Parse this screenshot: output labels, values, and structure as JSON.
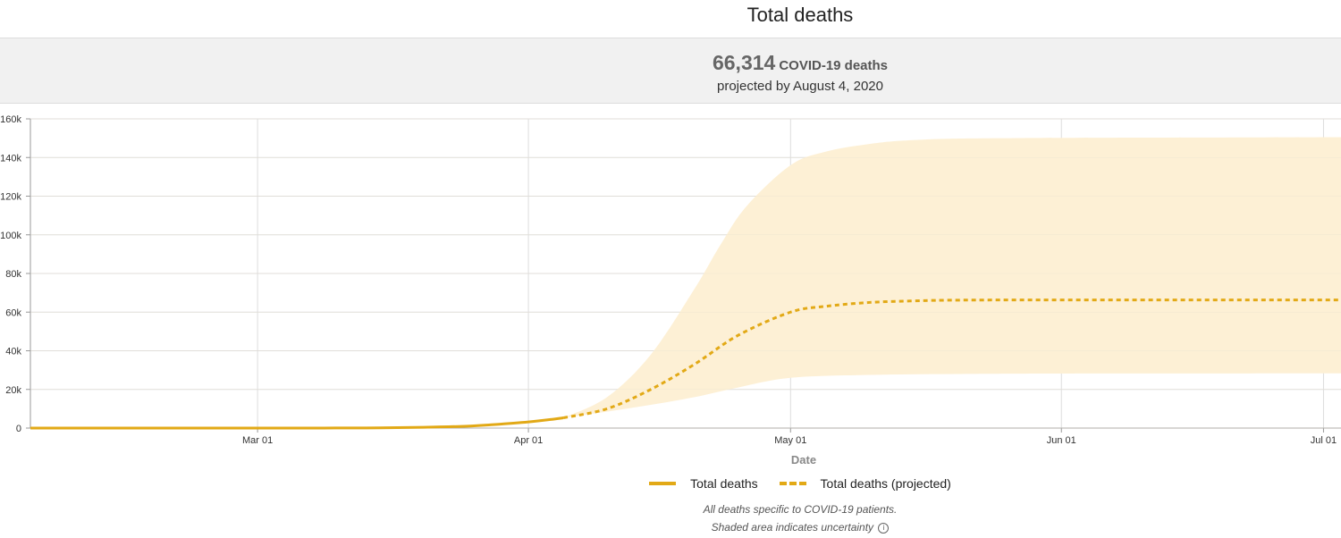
{
  "title": "Total deaths",
  "summary": {
    "value": "66,314",
    "label": "COVID-19 deaths",
    "subtitle": "projected by August 4, 2020"
  },
  "chart_data": {
    "type": "line",
    "xlabel": "Date",
    "ylabel": "",
    "ylim": [
      0,
      160000
    ],
    "yticks": [
      0,
      20000,
      40000,
      60000,
      80000,
      100000,
      120000,
      140000,
      160000
    ],
    "ytick_labels": [
      "0",
      "20k",
      "40k",
      "60k",
      "80k",
      "100k",
      "120k",
      "140k",
      "160k"
    ],
    "xlim": [
      "2020-02-04",
      "2020-07-03"
    ],
    "xticks": [
      "2020-03-01",
      "2020-04-01",
      "2020-05-01",
      "2020-06-01",
      "2020-07-01"
    ],
    "xtick_labels": [
      "Mar 01",
      "Apr 01",
      "May 01",
      "Jun 01",
      "Jul 01"
    ],
    "grid": true,
    "colors": {
      "line": "#e2a916",
      "band": "#fdf0d5",
      "grid": "#dddddd"
    },
    "series": [
      {
        "name": "Total deaths",
        "style": "solid",
        "points": [
          [
            "2020-02-04",
            0
          ],
          [
            "2020-03-01",
            0
          ],
          [
            "2020-03-10",
            30
          ],
          [
            "2020-03-15",
            100
          ],
          [
            "2020-03-20",
            400
          ],
          [
            "2020-03-25",
            1000
          ],
          [
            "2020-03-28",
            1800
          ],
          [
            "2020-04-01",
            3200
          ],
          [
            "2020-04-04",
            4700
          ],
          [
            "2020-04-05",
            5300
          ]
        ]
      },
      {
        "name": "Total deaths (projected)",
        "style": "dashed",
        "points": [
          [
            "2020-04-05",
            5300
          ],
          [
            "2020-04-10",
            10000
          ],
          [
            "2020-04-15",
            20000
          ],
          [
            "2020-04-20",
            33000
          ],
          [
            "2020-04-25",
            48000
          ],
          [
            "2020-05-01",
            60000
          ],
          [
            "2020-05-05",
            63000
          ],
          [
            "2020-05-10",
            65000
          ],
          [
            "2020-05-15",
            65800
          ],
          [
            "2020-05-20",
            66200
          ],
          [
            "2020-06-01",
            66300
          ],
          [
            "2020-07-03",
            66314
          ]
        ]
      }
    ],
    "uncertainty": {
      "upper": [
        [
          "2020-04-05",
          5300
        ],
        [
          "2020-04-10",
          16000
        ],
        [
          "2020-04-15",
          38000
        ],
        [
          "2020-04-20",
          72000
        ],
        [
          "2020-04-23",
          95000
        ],
        [
          "2020-04-26",
          115000
        ],
        [
          "2020-05-01",
          136000
        ],
        [
          "2020-05-05",
          143000
        ],
        [
          "2020-05-10",
          147000
        ],
        [
          "2020-05-15",
          149000
        ],
        [
          "2020-05-25",
          150000
        ],
        [
          "2020-07-03",
          150500
        ]
      ],
      "lower": [
        [
          "2020-04-05",
          5300
        ],
        [
          "2020-04-10",
          8500
        ],
        [
          "2020-04-15",
          12000
        ],
        [
          "2020-04-20",
          16000
        ],
        [
          "2020-04-25",
          21000
        ],
        [
          "2020-05-01",
          26000
        ],
        [
          "2020-05-10",
          27500
        ],
        [
          "2020-05-20",
          28000
        ],
        [
          "2020-06-01",
          28200
        ],
        [
          "2020-07-03",
          28300
        ]
      ]
    }
  },
  "legend": {
    "actual": "Total deaths",
    "projected": "Total deaths (projected)"
  },
  "notes": {
    "line1": "All deaths specific to COVID-19 patients.",
    "line2": "Shaded area indicates uncertainty",
    "info_icon": "info-icon"
  }
}
